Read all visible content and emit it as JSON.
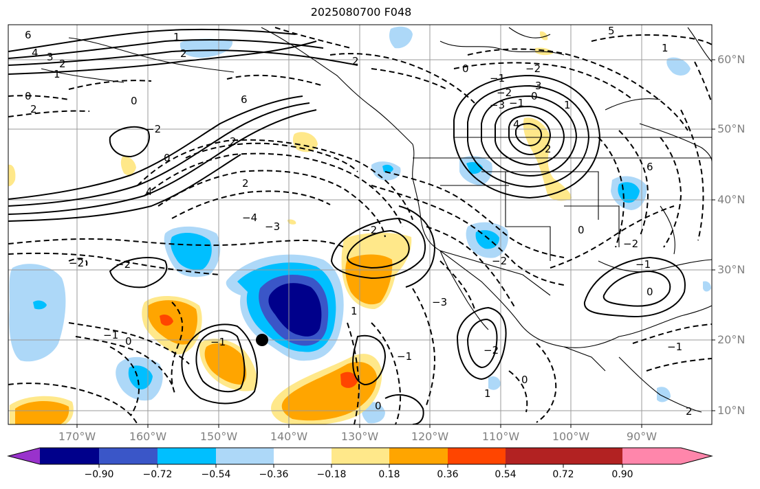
{
  "title": "2025080700 F048",
  "lat_labels": [
    "60°N",
    "50°N",
    "40°N",
    "30°N",
    "20°N",
    "10°N"
  ],
  "lon_labels": [
    "170°W",
    "160°W",
    "150°W",
    "140°W",
    "130°W",
    "120°W",
    "110°W",
    "100°W",
    "90°W"
  ],
  "colorbar": {
    "tick_labels": [
      "−0.90",
      "−0.72",
      "−0.54",
      "−0.36",
      "−0.18",
      "0.18",
      "0.36",
      "0.54",
      "0.72",
      "0.90"
    ],
    "colors": [
      "#9932cc",
      "#00008b",
      "#3a56c8",
      "#00bfff",
      "#add8f8",
      "#ffffff",
      "#ffe88a",
      "#ffa500",
      "#ff4500",
      "#b22222",
      "#ff86ab"
    ]
  },
  "contour_labels": [
    "6",
    "4",
    "3",
    "2",
    "1",
    "0",
    "2",
    "1",
    "2",
    "0",
    "−2",
    "0",
    "4",
    "6",
    "2",
    "2",
    "−4",
    "−3",
    "−2",
    "−2",
    "−1",
    "0",
    "−1",
    "−2",
    "1",
    "2",
    "0",
    "−1",
    "−2",
    "−3",
    "−2",
    "−1",
    "0",
    "1",
    "2",
    "3",
    "4",
    "5",
    "6",
    "0",
    "−2",
    "−3",
    "−2",
    "−1",
    "0",
    "1",
    "0",
    "−1",
    "−2",
    "−1",
    "1",
    "0",
    "2"
  ],
  "marker": "tropical-cyclone-position"
}
